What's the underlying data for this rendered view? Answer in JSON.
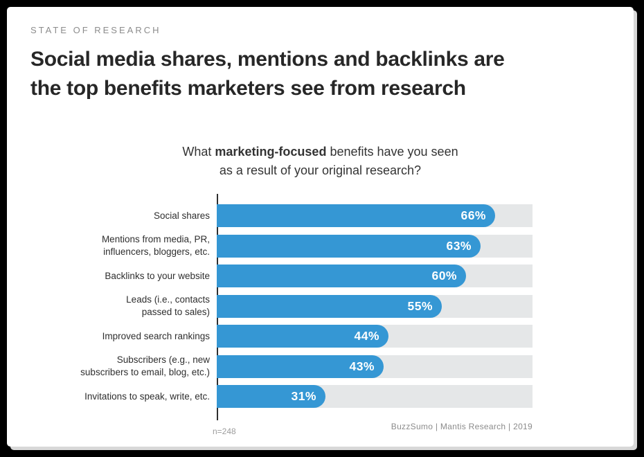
{
  "header": {
    "eyebrow": "STATE OF RESEARCH",
    "title_line1": "Social media shares, mentions and backlinks are",
    "title_line2": "the top benefits marketers see from research"
  },
  "footer": {
    "sample_size": "n=248",
    "source": "BuzzSumo | Mantis Research | 2019"
  },
  "chart_data": {
    "type": "bar",
    "orientation": "horizontal",
    "title": "What marketing-focused benefits have you seen as a result of your original research?",
    "title_rich": {
      "prefix": "What ",
      "bold": "marketing-focused",
      "suffix": " benefits have you seen",
      "line2": "as a result of your original research?"
    },
    "categories": [
      "Social shares",
      "Mentions from media, PR, influencers, bloggers, etc.",
      "Backlinks to your website",
      "Leads (i.e., contacts passed to sales)",
      "Improved search rankings",
      "Subscribers (e.g., new subscribers to email, blog, etc.)",
      "Invitations to speak, write, etc."
    ],
    "category_label_lines": [
      [
        "Social shares"
      ],
      [
        "Mentions from media, PR,",
        "influencers, bloggers, etc."
      ],
      [
        "Backlinks to your website"
      ],
      [
        "Leads (i.e., contacts",
        "passed to sales)"
      ],
      [
        "Improved search rankings"
      ],
      [
        "Subscribers (e.g., new",
        "subscribers to email, blog, etc.)"
      ],
      [
        "Invitations to speak, write, etc."
      ]
    ],
    "values": [
      66,
      63,
      60,
      55,
      44,
      43,
      31
    ],
    "value_suffix": "%",
    "xlim": [
      0,
      100
    ],
    "legend": null,
    "grid": false,
    "colors": {
      "bar": "#3597d4",
      "track": "#e5e7e8",
      "axis_line": "#2f2f2f"
    }
  }
}
